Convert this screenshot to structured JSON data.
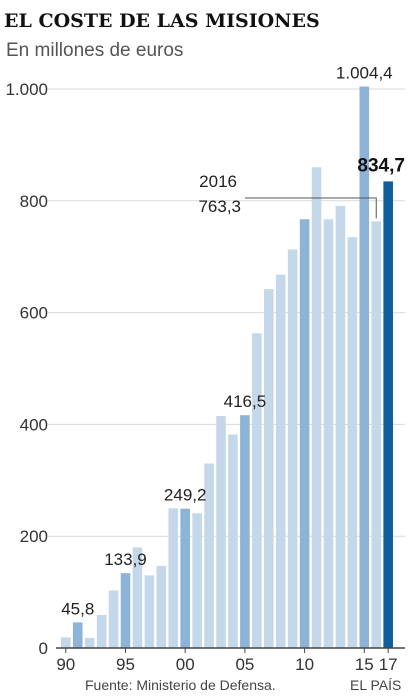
{
  "header": {
    "title": "EL COSTE DE LAS MISIONES",
    "subtitle": "En millones de euros"
  },
  "footer": {
    "source": "Fuente: Ministerio de Defensa.",
    "credit": "EL PAÍS"
  },
  "colors": {
    "bar_light": "#c4d8ea",
    "bar_mid": "#8db3d6",
    "bar_dark": "#0e5f9c",
    "grid": "#d9d9d9",
    "axis": "#444444",
    "leader": "#555555"
  },
  "chart_data": {
    "type": "bar",
    "title": "EL COSTE DE LAS MISIONES",
    "subtitle": "En millones de euros",
    "xlabel": "",
    "ylabel": "",
    "ylim": [
      0,
      1000
    ],
    "y_ticks": [
      0,
      200,
      400,
      600,
      800,
      1000
    ],
    "y_tick_labels": [
      "0",
      "200",
      "400",
      "600",
      "800",
      "1.000"
    ],
    "x_tick_labels": [
      "90",
      "95",
      "00",
      "05",
      "10",
      "15",
      "17"
    ],
    "x_tick_years": [
      1990,
      1995,
      2000,
      2005,
      2010,
      2015,
      2017
    ],
    "grid": true,
    "categories": [
      "1990",
      "1991",
      "1992",
      "1993",
      "1994",
      "1995",
      "1996",
      "1997",
      "1998",
      "1999",
      "2000",
      "2001",
      "2002",
      "2003",
      "2004",
      "2005",
      "2006",
      "2007",
      "2008",
      "2009",
      "2010",
      "2011",
      "2012",
      "2013",
      "2014",
      "2015",
      "2016",
      "2017"
    ],
    "values": [
      19,
      45.8,
      18,
      59,
      103,
      133.9,
      180,
      130,
      147,
      250,
      249.2,
      241,
      330,
      415,
      382,
      416.5,
      563,
      642,
      668,
      713,
      767,
      860,
      767,
      791,
      735,
      1004.4,
      763.3,
      834.7
    ],
    "highlighted_years": [
      "1991",
      "1995",
      "2000",
      "2005",
      "2010",
      "2015"
    ],
    "current_year": "2017",
    "annotations": [
      {
        "category": "1991",
        "text": "45,8"
      },
      {
        "category": "1995",
        "text": "133,9"
      },
      {
        "category": "2000",
        "text": "249,2"
      },
      {
        "category": "2005",
        "text": "416,5"
      },
      {
        "category": "2015",
        "text": "1.004,4"
      },
      {
        "category": "2017",
        "text": "834,7",
        "bold": true
      }
    ],
    "callout": {
      "category": "2016",
      "year_text": "2016",
      "value_text": "763,3"
    }
  }
}
